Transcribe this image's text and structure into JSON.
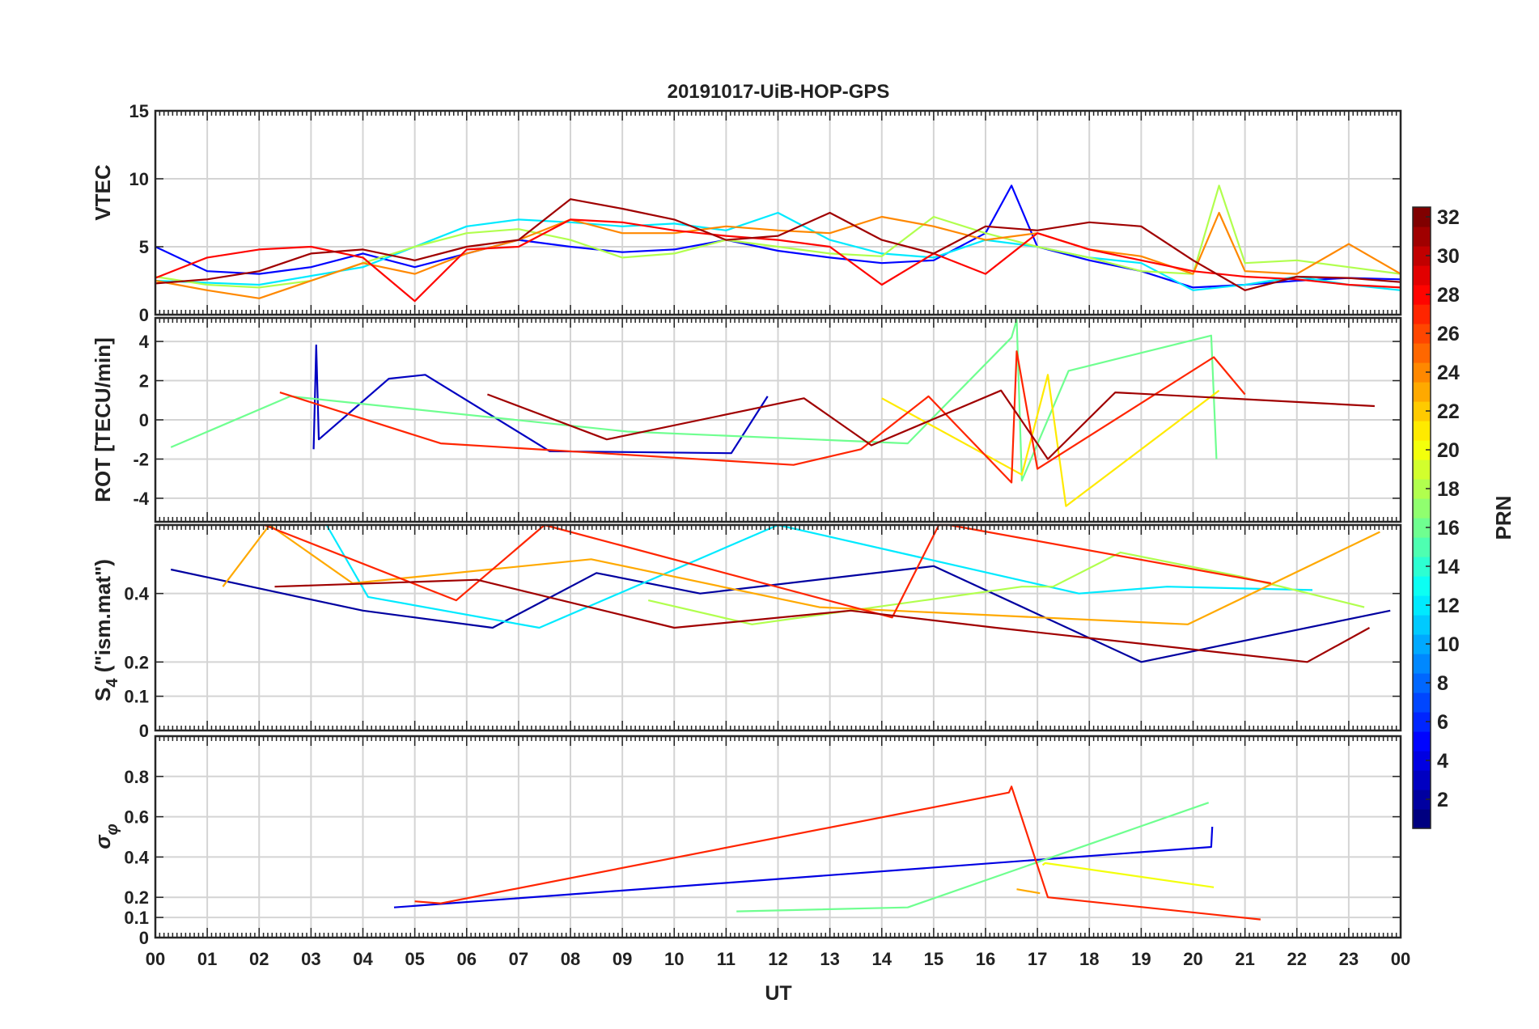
{
  "title": "20191017-UiB-HOP-GPS",
  "xlabel": "UT",
  "x_ticks": [
    "00",
    "01",
    "02",
    "03",
    "04",
    "05",
    "06",
    "07",
    "08",
    "09",
    "10",
    "11",
    "12",
    "13",
    "14",
    "15",
    "16",
    "17",
    "18",
    "19",
    "20",
    "21",
    "22",
    "23",
    "00"
  ],
  "colorbar": {
    "label": "PRN",
    "ticks": [
      "2",
      "4",
      "6",
      "8",
      "10",
      "12",
      "14",
      "16",
      "18",
      "20",
      "22",
      "24",
      "26",
      "28",
      "30",
      "32"
    ],
    "range": [
      1,
      32
    ],
    "colormap": "jet"
  },
  "panels": [
    {
      "name": "vtec",
      "ylabel": "VTEC",
      "ylim": [
        0,
        15
      ],
      "ticks": [
        "0",
        "5",
        "10",
        "15"
      ]
    },
    {
      "name": "rot",
      "ylabel": "ROT [TECU/min]",
      "ylim": [
        -5.2,
        5.2
      ],
      "ticks": [
        "-4",
        "-2",
        "0",
        "2",
        "4"
      ]
    },
    {
      "name": "s4",
      "ylabel": "S4 (\"ism.mat\")",
      "ylim": [
        0,
        0.6
      ],
      "ticks": [
        "0",
        "0.1",
        "0.2",
        "0.4"
      ]
    },
    {
      "name": "sigma",
      "ylabel": "σφ",
      "ylim": [
        0,
        1.0
      ],
      "ticks": [
        "0",
        "0.1",
        "0.2",
        "0.4",
        "0.6",
        "0.8"
      ]
    }
  ],
  "ylabel_parts": {
    "s4_main": "S",
    "s4_sub": "4",
    "s4_rest": " (\"ism.mat\")",
    "sigma_main": "σ",
    "sigma_sub": "φ"
  },
  "chart_data": [
    {
      "type": "line",
      "title": "20191017-UiB-HOP-GPS",
      "ylabel": "VTEC",
      "xlabel": "UT",
      "xlim": [
        0,
        24
      ],
      "ylim": [
        0,
        15
      ],
      "series": [
        {
          "name": "PRN 5",
          "prn": 5,
          "x": [
            0,
            1,
            2,
            3,
            4,
            5,
            6,
            7,
            8,
            9,
            10,
            11,
            12,
            13,
            14,
            15,
            16,
            16.5,
            17,
            18,
            19,
            20,
            21,
            22,
            23,
            24
          ],
          "values": [
            5,
            3.2,
            3,
            3.5,
            4.5,
            3.5,
            4.5,
            5.5,
            5,
            4.6,
            4.8,
            5.5,
            4.7,
            4.2,
            3.8,
            4,
            6,
            9.5,
            5,
            4,
            3.2,
            2,
            2.2,
            2.5,
            2.7,
            2.6
          ]
        },
        {
          "name": "PRN 12",
          "prn": 12,
          "x": [
            0,
            2,
            4,
            6,
            7,
            8,
            9,
            10,
            11,
            12,
            13,
            14,
            15,
            16,
            17,
            18,
            19,
            20,
            21,
            22,
            23,
            24
          ],
          "values": [
            2.5,
            2.2,
            3.5,
            6.5,
            7,
            6.8,
            6.5,
            6.7,
            6.2,
            7.5,
            5.5,
            4.5,
            4.2,
            5.5,
            5,
            4.2,
            3.8,
            1.8,
            2.2,
            2.8,
            2.2,
            1.8
          ]
        },
        {
          "name": "PRN 18",
          "prn": 18,
          "x": [
            0,
            1,
            2,
            3,
            4,
            5,
            6,
            7,
            8,
            9,
            10,
            11,
            12,
            13,
            14,
            15,
            16,
            17,
            18,
            19,
            20,
            20.5,
            21,
            22,
            23,
            24
          ],
          "values": [
            2.8,
            2.2,
            2,
            2.5,
            3.8,
            5,
            6,
            6.3,
            5.5,
            4.2,
            4.5,
            5.5,
            5,
            4.5,
            4.3,
            7.2,
            6,
            5,
            4.2,
            3.2,
            3,
            9.5,
            3.8,
            4,
            3.5,
            3
          ]
        },
        {
          "name": "PRN 24",
          "prn": 24,
          "x": [
            0,
            1,
            2,
            3,
            4,
            5,
            6,
            7,
            8,
            9,
            10,
            11,
            12,
            13,
            14,
            15,
            16,
            17,
            18,
            19,
            20,
            20.5,
            21,
            22,
            23,
            24
          ],
          "values": [
            2.5,
            1.8,
            1.2,
            2.5,
            3.8,
            3,
            4.5,
            5.5,
            7,
            6,
            6,
            6.5,
            6.2,
            6,
            7.2,
            6.5,
            5.5,
            6,
            4.8,
            4.3,
            3,
            7.5,
            3.2,
            3,
            5.2,
            3
          ]
        },
        {
          "name": "PRN 28",
          "prn": 28,
          "x": [
            0,
            1,
            2,
            3,
            4,
            5,
            6,
            7,
            8,
            9,
            10,
            11,
            12,
            13,
            14,
            15,
            16,
            17,
            18,
            19,
            20,
            21,
            22,
            23,
            24
          ],
          "values": [
            2.7,
            4.2,
            4.8,
            5,
            4.2,
            1,
            4.8,
            5,
            7,
            6.8,
            6.2,
            5.8,
            5.5,
            5,
            2.2,
            4.5,
            3,
            6,
            4.8,
            4,
            3.2,
            2.8,
            2.6,
            2.2,
            2
          ]
        },
        {
          "name": "PRN 31",
          "prn": 31,
          "x": [
            0,
            1,
            2,
            3,
            4,
            5,
            6,
            7,
            8,
            9,
            10,
            11,
            12,
            13,
            14,
            15,
            16,
            17,
            18,
            19,
            20,
            21,
            22,
            23,
            24
          ],
          "values": [
            2.3,
            2.6,
            3.2,
            4.5,
            4.8,
            4,
            5,
            5.5,
            8.5,
            7.8,
            7,
            5.5,
            5.8,
            7.5,
            5.5,
            4.5,
            6.5,
            6.2,
            6.8,
            6.5,
            4,
            1.8,
            2.8,
            2.7,
            2.4
          ]
        }
      ]
    },
    {
      "type": "line",
      "ylabel": "ROT [TECU/min]",
      "xlabel": "UT",
      "xlim": [
        0,
        24
      ],
      "ylim": [
        -5.2,
        5.2
      ],
      "series": [
        {
          "name": "PRN 3",
          "prn": 3,
          "x": [
            3.05,
            3.1,
            3.15,
            4.5,
            5.2,
            7.6,
            11.1,
            11.8
          ],
          "values": [
            -1.5,
            3.8,
            -1,
            2.1,
            2.3,
            -1.6,
            -1.7,
            1.2
          ]
        },
        {
          "name": "PRN 16",
          "prn": 16,
          "x": [
            0.3,
            2.6,
            9.1,
            14.5,
            16.5,
            16.6,
            16.7,
            17.6,
            20.35,
            20.45
          ],
          "values": [
            -1.4,
            1.2,
            -0.6,
            -1.2,
            4.2,
            5.1,
            -3.1,
            2.5,
            4.3,
            -2
          ]
        },
        {
          "name": "PRN 21",
          "prn": 21,
          "x": [
            14,
            16.7,
            17.2,
            17.55,
            20.5
          ],
          "values": [
            1.1,
            -2.8,
            2.3,
            -4.4,
            1.5
          ]
        },
        {
          "name": "PRN 27",
          "prn": 27,
          "x": [
            2.4,
            5.5,
            12.3,
            13.6,
            14.9,
            16.5,
            16.6,
            17,
            20.4,
            21
          ],
          "values": [
            1.4,
            -1.2,
            -2.3,
            -1.5,
            1.2,
            -3.2,
            3.5,
            -2.5,
            3.2,
            1.3
          ]
        },
        {
          "name": "PRN 31",
          "prn": 31,
          "x": [
            6.4,
            8.7,
            12.5,
            13.8,
            16.3,
            17.2,
            18.5,
            23.5
          ],
          "values": [
            1.3,
            -1,
            1.1,
            -1.3,
            1.5,
            -2,
            1.4,
            0.7
          ]
        }
      ]
    },
    {
      "type": "line",
      "ylabel": "S4 (\"ism.mat\")",
      "xlabel": "UT",
      "xlim": [
        0,
        24
      ],
      "ylim": [
        0,
        0.6
      ],
      "series": [
        {
          "name": "PRN 2",
          "prn": 2,
          "x": [
            0.3,
            4,
            6.5,
            8.5,
            10.5,
            15,
            19,
            23.8
          ],
          "values": [
            0.47,
            0.35,
            0.3,
            0.46,
            0.4,
            0.48,
            0.2,
            0.35
          ]
        },
        {
          "name": "PRN 12",
          "prn": 12,
          "x": [
            3.3,
            4.1,
            7.4,
            12,
            17.8,
            19.5,
            22.3
          ],
          "values": [
            0.61,
            0.39,
            0.3,
            0.6,
            0.4,
            0.42,
            0.41
          ]
        },
        {
          "name": "PRN 18",
          "prn": 18,
          "x": [
            9.5,
            11.5,
            16.7,
            17.3,
            18.6,
            20.9,
            23.3
          ],
          "values": [
            0.38,
            0.31,
            0.42,
            0.42,
            0.52,
            0.45,
            0.36
          ]
        },
        {
          "name": "PRN 23",
          "prn": 23,
          "x": [
            1.3,
            2.2,
            3.8,
            8.4,
            12.8,
            19.9,
            23.6
          ],
          "values": [
            0.42,
            0.6,
            0.43,
            0.5,
            0.36,
            0.31,
            0.58
          ]
        },
        {
          "name": "PRN 27",
          "prn": 27,
          "x": [
            2.1,
            5.8,
            7.5,
            14.2,
            15.1,
            15.3,
            21.5
          ],
          "values": [
            0.6,
            0.38,
            0.6,
            0.33,
            0.6,
            0.6,
            0.43
          ]
        },
        {
          "name": "PRN 31",
          "prn": 31,
          "x": [
            2.3,
            6.2,
            10,
            13.4,
            16.2,
            22.2,
            23.4
          ],
          "values": [
            0.42,
            0.44,
            0.3,
            0.35,
            0.3,
            0.2,
            0.3
          ]
        }
      ]
    },
    {
      "type": "line",
      "ylabel": "σφ",
      "xlabel": "UT",
      "xlim": [
        0,
        24
      ],
      "ylim": [
        0,
        1.0
      ],
      "series": [
        {
          "name": "PRN 4",
          "prn": 4,
          "x": [
            4.6,
            20.35,
            20.37
          ],
          "values": [
            0.15,
            0.45,
            0.55
          ]
        },
        {
          "name": "PRN 16",
          "prn": 16,
          "x": [
            11.2,
            14.5,
            20.3
          ],
          "values": [
            0.13,
            0.15,
            0.67
          ]
        },
        {
          "name": "PRN 20",
          "prn": 20,
          "x": [
            17.1,
            17.15,
            20.4
          ],
          "values": [
            0.36,
            0.37,
            0.25
          ]
        },
        {
          "name": "PRN 23",
          "prn": 23,
          "x": [
            16.6,
            17.05
          ],
          "values": [
            0.24,
            0.22
          ]
        },
        {
          "name": "PRN 27",
          "prn": 27,
          "x": [
            5,
            5.5,
            16.45,
            16.5,
            17.2,
            21.3
          ],
          "values": [
            0.18,
            0.17,
            0.72,
            0.75,
            0.2,
            0.09
          ]
        }
      ]
    }
  ]
}
